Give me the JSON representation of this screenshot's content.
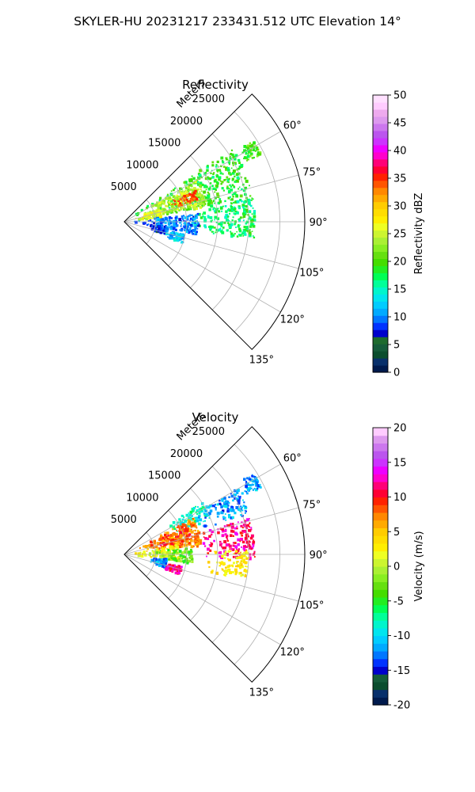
{
  "figure_title": "SKYLER-HU  20231217  233431.512 UTC Elevation 14°",
  "chart_data": [
    {
      "type": "polar-sector-heatmap",
      "title": "Reflectivity",
      "radial_label": "Meters",
      "radial_ticks": [
        5000,
        10000,
        15000,
        20000,
        25000
      ],
      "rmax": 29000,
      "theta_range_deg": [
        45,
        135
      ],
      "theta_ticks": [
        "60°",
        "75°",
        "90°",
        "105°",
        "120°",
        "135°"
      ],
      "colorbar": {
        "label": "Reflectivity dBZ",
        "vmin": 0,
        "vmax": 50,
        "ticks": [
          0,
          5,
          10,
          15,
          20,
          25,
          30,
          35,
          40,
          45,
          50
        ],
        "colors": [
          "#001a4d",
          "#08306b",
          "#0b4d2e",
          "#155c3a",
          "#1e6b2e",
          "#0000cc",
          "#0033ff",
          "#0077ff",
          "#00aaff",
          "#00ccff",
          "#00e5ee",
          "#00f5cc",
          "#00ff99",
          "#00ff55",
          "#22ee22",
          "#44dd00",
          "#66e010",
          "#88ee22",
          "#aaf033",
          "#ccf530",
          "#eeff22",
          "#ffee00",
          "#ffdd00",
          "#ffcc00",
          "#ffaa00",
          "#ff8800",
          "#ff5500",
          "#ff2200",
          "#ff0033",
          "#ff0077",
          "#ff00cc",
          "#ee00ff",
          "#cc33ff",
          "#bb55ee",
          "#cc77ee",
          "#dd99ee",
          "#eeaaee",
          "#ffccff",
          "#ffe0ff"
        ]
      },
      "echo_regions": [
        {
          "th": [
            56,
            80
          ],
          "r": [
            1500,
            21000
          ],
          "value": 19
        },
        {
          "th": [
            60,
            80
          ],
          "r": [
            3000,
            13500
          ],
          "value": 24
        },
        {
          "th": [
            66,
            74
          ],
          "r": [
            8000,
            12500
          ],
          "value": 34
        },
        {
          "th": [
            70,
            84
          ],
          "r": [
            1500,
            6000
          ],
          "value": 26
        },
        {
          "th": [
            80,
            98
          ],
          "r": [
            10000,
            21000
          ],
          "value": 17
        },
        {
          "th": [
            84,
            100
          ],
          "r": [
            1000,
            12000
          ],
          "value": 10
        },
        {
          "th": [
            58,
            64
          ],
          "r": [
            21000,
            24500
          ],
          "value": 20
        },
        {
          "th": [
            96,
            108
          ],
          "r": [
            4000,
            7000
          ],
          "value": 8
        },
        {
          "th": [
            102,
            110
          ],
          "r": [
            6500,
            10000
          ],
          "value": 12
        }
      ]
    },
    {
      "type": "polar-sector-heatmap",
      "title": "Velocity",
      "radial_label": "Meters",
      "radial_ticks": [
        5000,
        10000,
        15000,
        20000,
        25000
      ],
      "rmax": 29000,
      "theta_range_deg": [
        45,
        135
      ],
      "theta_ticks": [
        "60°",
        "75°",
        "90°",
        "105°",
        "120°",
        "135°"
      ],
      "colorbar": {
        "label": "Velocity (m/s)",
        "vmin": -20,
        "vmax": 20,
        "ticks": [
          -20,
          -15,
          -10,
          -5,
          0,
          5,
          10,
          15,
          20
        ],
        "colors": [
          "#001a4d",
          "#08306b",
          "#0b4d2e",
          "#155c3a",
          "#0000cc",
          "#0033ff",
          "#0077ff",
          "#00aaff",
          "#00ccff",
          "#00e5ee",
          "#00f5cc",
          "#00ff99",
          "#00ff55",
          "#22ee22",
          "#44dd00",
          "#66e010",
          "#88ee22",
          "#aaf033",
          "#ccf530",
          "#eeff22",
          "#ffee00",
          "#ffdd00",
          "#ffcc00",
          "#ffaa00",
          "#ff8800",
          "#ff5500",
          "#ff2200",
          "#ff0033",
          "#ff0077",
          "#ff00cc",
          "#ee00ff",
          "#cc33ff",
          "#bb55ee",
          "#cc77ee",
          "#dd99ee",
          "#ffccff"
        ]
      },
      "echo_regions": [
        {
          "th": [
            56,
            68
          ],
          "r": [
            8000,
            15000
          ],
          "value": -8
        },
        {
          "th": [
            60,
            72
          ],
          "r": [
            12500,
            21000
          ],
          "value": -12
        },
        {
          "th": [
            58,
            64
          ],
          "r": [
            21000,
            24500
          ],
          "value": -12
        },
        {
          "th": [
            74,
            92
          ],
          "r": [
            12000,
            21000
          ],
          "value": 12
        },
        {
          "th": [
            62,
            84
          ],
          "r": [
            2500,
            12500
          ],
          "value": 7
        },
        {
          "th": [
            66,
            78
          ],
          "r": [
            5000,
            11000
          ],
          "value": 9
        },
        {
          "th": [
            80,
            96
          ],
          "r": [
            1500,
            9000
          ],
          "value": 2
        },
        {
          "th": [
            88,
            102
          ],
          "r": [
            13000,
            20000
          ],
          "value": 3
        },
        {
          "th": [
            84,
            98
          ],
          "r": [
            5000,
            11000
          ],
          "value": -3
        },
        {
          "th": [
            96,
            108
          ],
          "r": [
            4000,
            7000
          ],
          "value": -12
        },
        {
          "th": [
            102,
            110
          ],
          "r": [
            6500,
            9500
          ],
          "value": 12
        }
      ]
    }
  ]
}
